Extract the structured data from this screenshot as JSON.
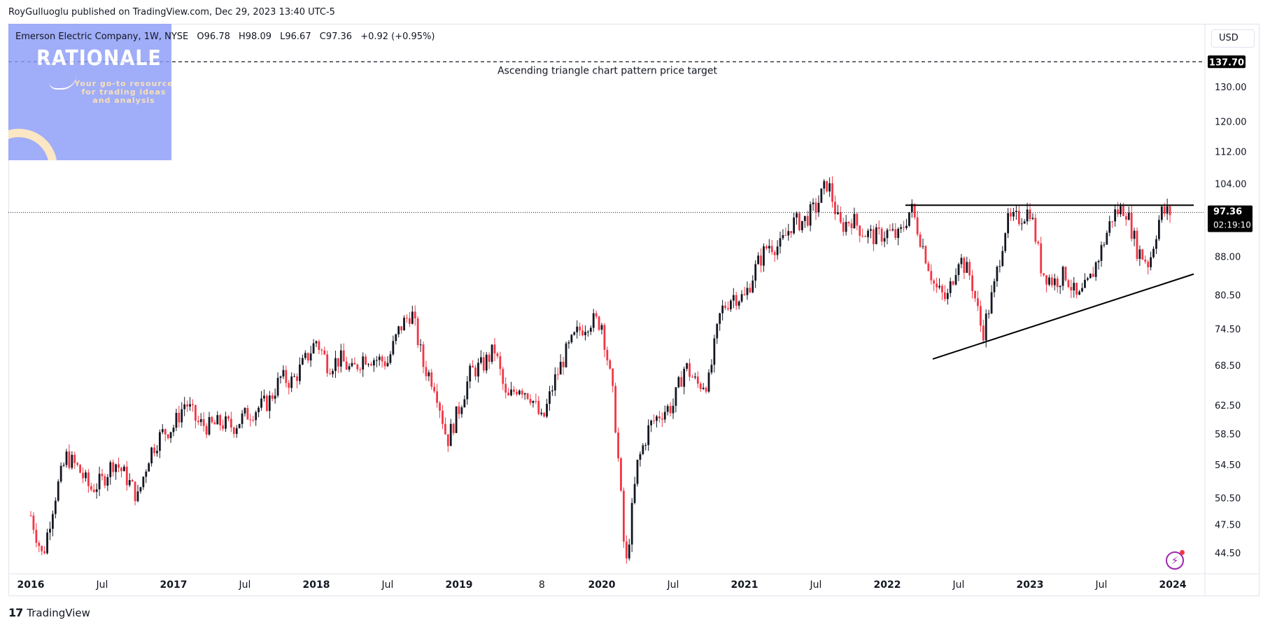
{
  "header": {
    "published_by": "RoyGulluoglu published on TradingView.com, Dec 29, 2023 13:40 UTC-5"
  },
  "legend": {
    "symbol": "Emerson Electric Company, 1W, NYSE",
    "open": "O96.78",
    "high": "H98.09",
    "low": "L96.67",
    "close": "C97.36",
    "change": "+0.92 (+0.95%)"
  },
  "logo": {
    "title": "RATIONALE",
    "tagline_lines": [
      "Your go-to resource",
      "for trading ideas",
      "and analysis"
    ]
  },
  "currency_button": "USD",
  "footer": {
    "brand_mark": "17",
    "brand": "TradingView"
  },
  "icons": {
    "alert": "lightning-bolt-icon"
  },
  "colors": {
    "up": "#131722",
    "down": "#f23645",
    "axis_text": "#131722",
    "grid": "#f0f3fa",
    "badge": "#000000"
  },
  "chart_data": {
    "type": "candlestick",
    "scale": "log",
    "price_axis_ticks": [
      "130.00",
      "120.00",
      "112.00",
      "104.00",
      "88.00",
      "80.50",
      "74.50",
      "68.50",
      "62.50",
      "58.50",
      "54.50",
      "50.50",
      "47.50",
      "44.50"
    ],
    "time_axis_ticks": [
      "2016",
      "Jul",
      "2017",
      "Jul",
      "2018",
      "Jul",
      "2019",
      "8",
      "2020",
      "Jul",
      "2021",
      "Jul",
      "2022",
      "Jul",
      "2023",
      "Jul",
      "2024"
    ],
    "current_price": {
      "value": "97.36",
      "countdown": "02:19:10"
    },
    "target_line": {
      "value": "137.70",
      "label": "Ascending triangle chart pattern price target"
    },
    "resistance_line": {
      "value": 99.0,
      "from": "2022-03",
      "to": "2024-01"
    },
    "support_line": {
      "from": [
        "2022-06",
        69.5
      ],
      "to": [
        "2024-01",
        84.5
      ]
    },
    "weekly_anchors": [
      [
        "2016-01",
        48.5
      ],
      [
        "2016-02",
        44.0
      ],
      [
        "2016-03",
        50.5
      ],
      [
        "2016-04",
        55.5
      ],
      [
        "2016-05",
        54.0
      ],
      [
        "2016-06",
        51.5
      ],
      [
        "2016-07",
        52.5
      ],
      [
        "2016-08",
        55.0
      ],
      [
        "2016-09",
        53.0
      ],
      [
        "2016-10",
        50.5
      ],
      [
        "2016-11",
        56.0
      ],
      [
        "2016-12",
        58.5
      ],
      [
        "2017-01",
        59.5
      ],
      [
        "2017-02",
        63.0
      ],
      [
        "2017-03",
        60.0
      ],
      [
        "2017-04",
        59.5
      ],
      [
        "2017-05",
        60.0
      ],
      [
        "2017-06",
        59.5
      ],
      [
        "2017-07",
        61.0
      ],
      [
        "2017-08",
        62.0
      ],
      [
        "2017-09",
        63.0
      ],
      [
        "2017-10",
        66.5
      ],
      [
        "2017-11",
        66.0
      ],
      [
        "2017-12",
        69.0
      ],
      [
        "2018-01",
        72.5
      ],
      [
        "2018-02",
        68.5
      ],
      [
        "2018-03",
        69.5
      ],
      [
        "2018-04",
        67.5
      ],
      [
        "2018-05",
        70.0
      ],
      [
        "2018-06",
        69.5
      ],
      [
        "2018-07",
        69.0
      ],
      [
        "2018-08",
        74.5
      ],
      [
        "2018-09",
        77.5
      ],
      [
        "2018-10",
        68.5
      ],
      [
        "2018-11",
        65.5
      ],
      [
        "2018-12",
        57.5
      ],
      [
        "2019-01",
        62.0
      ],
      [
        "2019-02",
        67.5
      ],
      [
        "2019-03",
        68.5
      ],
      [
        "2019-04",
        71.0
      ],
      [
        "2019-05",
        63.0
      ],
      [
        "2019-06",
        65.5
      ],
      [
        "2019-07",
        64.0
      ],
      [
        "2019-08",
        60.0
      ],
      [
        "2019-09",
        66.0
      ],
      [
        "2019-10",
        70.5
      ],
      [
        "2019-11",
        74.0
      ],
      [
        "2019-12",
        76.0
      ],
      [
        "2020-01",
        75.5
      ],
      [
        "2020-02",
        63.0
      ],
      [
        "2020-03",
        42.5
      ],
      [
        "2020-04",
        54.5
      ],
      [
        "2020-05",
        59.5
      ],
      [
        "2020-06",
        61.5
      ],
      [
        "2020-07",
        62.5
      ],
      [
        "2020-08",
        68.5
      ],
      [
        "2020-09",
        65.5
      ],
      [
        "2020-10",
        66.0
      ],
      [
        "2020-11",
        77.5
      ],
      [
        "2020-12",
        80.5
      ],
      [
        "2021-01",
        80.0
      ],
      [
        "2021-02",
        86.0
      ],
      [
        "2021-03",
        90.5
      ],
      [
        "2021-04",
        90.0
      ],
      [
        "2021-05",
        95.0
      ],
      [
        "2021-06",
        95.5
      ],
      [
        "2021-07",
        98.5
      ],
      [
        "2021-08",
        104.5
      ],
      [
        "2021-09",
        94.0
      ],
      [
        "2021-10",
        96.0
      ],
      [
        "2021-11",
        93.0
      ],
      [
        "2021-12",
        92.0
      ],
      [
        "2022-01",
        93.0
      ],
      [
        "2022-02",
        92.0
      ],
      [
        "2022-03",
        98.5
      ],
      [
        "2022-04",
        90.0
      ],
      [
        "2022-05",
        82.0
      ],
      [
        "2022-06",
        79.5
      ],
      [
        "2022-07",
        88.0
      ],
      [
        "2022-08",
        84.0
      ],
      [
        "2022-09",
        73.5
      ],
      [
        "2022-10",
        82.0
      ],
      [
        "2022-11",
        95.0
      ],
      [
        "2022-12",
        96.0
      ],
      [
        "2023-01",
        98.0
      ],
      [
        "2023-02",
        85.0
      ],
      [
        "2023-03",
        83.0
      ],
      [
        "2023-04",
        84.5
      ],
      [
        "2023-05",
        79.5
      ],
      [
        "2023-06",
        83.0
      ],
      [
        "2023-07",
        89.5
      ],
      [
        "2023-08",
        97.0
      ],
      [
        "2023-09",
        98.5
      ],
      [
        "2023-10",
        89.5
      ],
      [
        "2023-11",
        86.5
      ],
      [
        "2023-12",
        97.36
      ]
    ]
  }
}
